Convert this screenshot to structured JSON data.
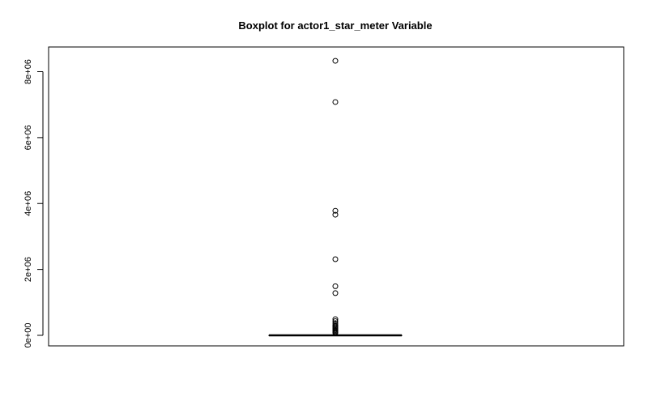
{
  "chart_data": {
    "type": "boxplot",
    "title": "Boxplot for actor1_star_meter Variable",
    "xlabel": "",
    "ylabel": "",
    "ylim": [
      -320000,
      8750000
    ],
    "y_ticks": [
      0,
      2000000,
      4000000,
      6000000,
      8000000
    ],
    "y_tick_labels": [
      "0e+00",
      "2e+06",
      "4e+06",
      "6e+06",
      "8e+06"
    ],
    "grid": false,
    "box": {
      "lower_whisker": 0,
      "q1": 0,
      "median": 0,
      "q3": 0,
      "upper_whisker": 0
    },
    "outliers": [
      8330000,
      7080000,
      3780000,
      3660000,
      2310000,
      1490000,
      1280000,
      490000,
      430000,
      370000,
      320000,
      280000,
      250000,
      220000,
      190000,
      160000,
      130000,
      100000,
      70000
    ]
  }
}
